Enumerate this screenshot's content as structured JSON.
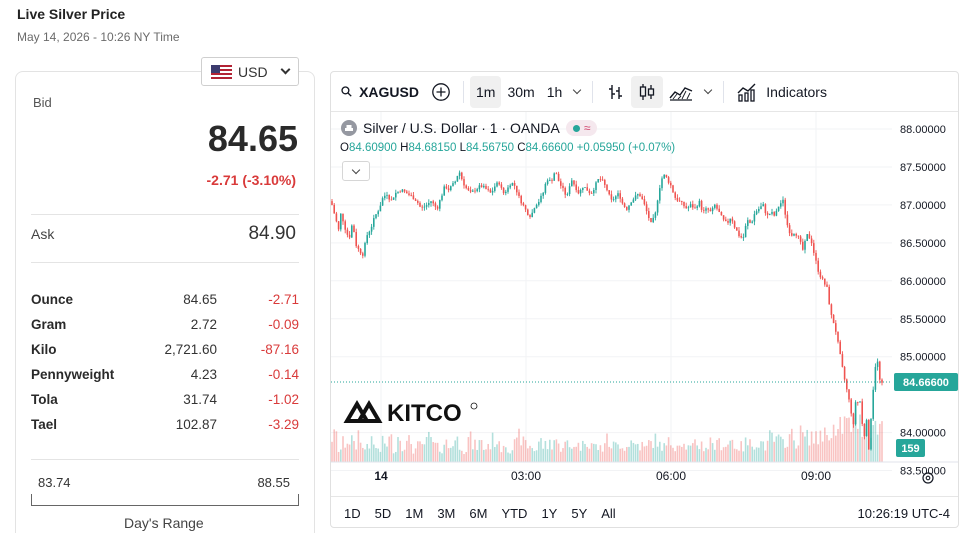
{
  "page": {
    "title": "Live Silver Price",
    "subtitle": "May 14, 2026 - 10:26 NY Time"
  },
  "currency": {
    "selected": "USD",
    "flag_icon": "us-flag-icon"
  },
  "bid": {
    "label": "Bid",
    "value": "84.65",
    "change": "-2.71 (-3.10%)"
  },
  "ask": {
    "label": "Ask",
    "value": "84.90"
  },
  "units": [
    {
      "name": "Ounce",
      "price": "84.65",
      "change": "-2.71"
    },
    {
      "name": "Gram",
      "price": "2.72",
      "change": "-0.09"
    },
    {
      "name": "Kilo",
      "price": "2,721.60",
      "change": "-87.16"
    },
    {
      "name": "Pennyweight",
      "price": "4.23",
      "change": "-0.14"
    },
    {
      "name": "Tola",
      "price": "31.74",
      "change": "-1.02"
    },
    {
      "name": "Tael",
      "price": "102.87",
      "change": "-3.29"
    }
  ],
  "days_range": {
    "low": "83.74",
    "high": "88.55",
    "label": "Day's Range"
  },
  "toolbar": {
    "symbol": "XAGUSD",
    "intervals": [
      "1m",
      "30m",
      "1h"
    ],
    "active_interval": "1m",
    "indicators_label": "Indicators"
  },
  "legend": {
    "title": "Silver / U.S. Dollar · 1 · OANDA",
    "open_label": "O",
    "open": "84.60900",
    "high_label": "H",
    "high": "84.68150",
    "low_label": "L",
    "low": "84.56750",
    "close_label": "C",
    "close": "84.66600",
    "change": "+0.05950 (+0.07%)"
  },
  "watermark": "KITCO",
  "price_tag": "84.66600",
  "volume_tag": "159",
  "range_buttons": [
    "1D",
    "5D",
    "1M",
    "3M",
    "6M",
    "YTD",
    "1Y",
    "5Y",
    "All"
  ],
  "clock": "10:26:19 UTC-4",
  "colors": {
    "up": "#26a69a",
    "down": "#ef5350",
    "negative_text": "#d93a3a"
  },
  "chart_data": {
    "type": "candlestick",
    "y_ticks": [
      "88.00000",
      "87.50000",
      "87.00000",
      "86.50000",
      "86.00000",
      "85.50000",
      "85.00000",
      "84.00000",
      "83.50000"
    ],
    "ylim": [
      83.5,
      88.0
    ],
    "x_ticks": [
      "14",
      "03:00",
      "06:00",
      "09:00"
    ],
    "last_price": 84.666,
    "path": [
      [
        0,
        87.05
      ],
      [
        4,
        86.85
      ],
      [
        8,
        86.65
      ],
      [
        10,
        86.9
      ],
      [
        14,
        86.7
      ],
      [
        18,
        86.55
      ],
      [
        22,
        86.8
      ],
      [
        24,
        86.5
      ],
      [
        28,
        86.4
      ],
      [
        32,
        86.35
      ],
      [
        36,
        86.6
      ],
      [
        40,
        86.7
      ],
      [
        44,
        86.85
      ],
      [
        48,
        86.95
      ],
      [
        52,
        87.1
      ],
      [
        56,
        87.15
      ],
      [
        60,
        87.05
      ],
      [
        64,
        87.15
      ],
      [
        70,
        87.2
      ],
      [
        76,
        87.15
      ],
      [
        82,
        87.1
      ],
      [
        86,
        87.05
      ],
      [
        90,
        86.95
      ],
      [
        96,
        87.0
      ],
      [
        100,
        87.05
      ],
      [
        106,
        86.95
      ],
      [
        110,
        87.1
      ],
      [
        114,
        87.25
      ],
      [
        118,
        87.2
      ],
      [
        124,
        87.3
      ],
      [
        128,
        87.45
      ],
      [
        132,
        87.3
      ],
      [
        136,
        87.2
      ],
      [
        140,
        87.15
      ],
      [
        144,
        87.2
      ],
      [
        150,
        87.25
      ],
      [
        156,
        87.2
      ],
      [
        160,
        87.15
      ],
      [
        164,
        87.25
      ],
      [
        168,
        87.3
      ],
      [
        172,
        87.15
      ],
      [
        176,
        87.2
      ],
      [
        180,
        87.3
      ],
      [
        184,
        87.25
      ],
      [
        188,
        87.1
      ],
      [
        192,
        87.0
      ],
      [
        196,
        86.9
      ],
      [
        200,
        86.85
      ],
      [
        204,
        87.0
      ],
      [
        208,
        87.05
      ],
      [
        212,
        87.15
      ],
      [
        216,
        87.35
      ],
      [
        220,
        87.3
      ],
      [
        224,
        87.45
      ],
      [
        228,
        87.3
      ],
      [
        232,
        87.2
      ],
      [
        236,
        87.1
      ],
      [
        240,
        87.35
      ],
      [
        244,
        87.25
      ],
      [
        248,
        87.15
      ],
      [
        252,
        87.25
      ],
      [
        256,
        87.2
      ],
      [
        260,
        87.15
      ],
      [
        264,
        87.25
      ],
      [
        268,
        87.35
      ],
      [
        272,
        87.3
      ],
      [
        276,
        87.2
      ],
      [
        280,
        87.05
      ],
      [
        284,
        87.1
      ],
      [
        288,
        87.15
      ],
      [
        292,
        87.0
      ],
      [
        296,
        86.95
      ],
      [
        300,
        87.05
      ],
      [
        304,
        87.1
      ],
      [
        308,
        87.15
      ],
      [
        312,
        87.05
      ],
      [
        316,
        86.9
      ],
      [
        320,
        86.75
      ],
      [
        324,
        86.85
      ],
      [
        328,
        87.2
      ],
      [
        332,
        87.4
      ],
      [
        336,
        87.35
      ],
      [
        340,
        87.25
      ],
      [
        344,
        87.1
      ],
      [
        348,
        87.05
      ],
      [
        352,
        87.0
      ],
      [
        356,
        86.95
      ],
      [
        360,
        87.0
      ],
      [
        364,
        86.95
      ],
      [
        368,
        87.05
      ],
      [
        372,
        86.9
      ],
      [
        376,
        86.95
      ],
      [
        380,
        86.9
      ],
      [
        384,
        87.0
      ],
      [
        388,
        86.9
      ],
      [
        392,
        86.8
      ],
      [
        396,
        86.75
      ],
      [
        400,
        86.85
      ],
      [
        404,
        86.7
      ],
      [
        408,
        86.6
      ],
      [
        412,
        86.55
      ],
      [
        416,
        86.8
      ],
      [
        420,
        86.75
      ],
      [
        424,
        86.9
      ],
      [
        428,
        86.95
      ],
      [
        432,
        87.0
      ],
      [
        436,
        86.85
      ],
      [
        440,
        86.9
      ],
      [
        444,
        86.85
      ],
      [
        448,
        87.0
      ],
      [
        452,
        87.05
      ],
      [
        456,
        86.75
      ],
      [
        460,
        86.6
      ],
      [
        464,
        86.65
      ],
      [
        468,
        86.55
      ],
      [
        472,
        86.4
      ],
      [
        476,
        86.6
      ],
      [
        480,
        86.55
      ],
      [
        484,
        86.3
      ],
      [
        488,
        86.1
      ],
      [
        492,
        86.0
      ],
      [
        496,
        85.9
      ],
      [
        500,
        85.55
      ],
      [
        504,
        85.4
      ],
      [
        508,
        85.1
      ],
      [
        512,
        84.8
      ],
      [
        516,
        84.55
      ],
      [
        520,
        84.3
      ],
      [
        522,
        84.0
      ],
      [
        524,
        84.45
      ],
      [
        526,
        84.3
      ],
      [
        528,
        84.55
      ],
      [
        532,
        84.0
      ],
      [
        534,
        83.95
      ],
      [
        536,
        84.25
      ],
      [
        538,
        83.7
      ],
      [
        540,
        84.2
      ],
      [
        542,
        84.55
      ],
      [
        544,
        84.85
      ],
      [
        546,
        85.0
      ],
      [
        548,
        84.75
      ],
      [
        550,
        84.6
      ],
      [
        552,
        84.67
      ]
    ],
    "volumes": [
      40,
      20,
      30,
      35,
      25,
      45,
      20,
      30,
      25,
      18,
      30,
      35,
      22,
      40,
      28,
      32,
      20,
      25,
      30,
      38,
      26,
      22,
      30,
      24,
      34,
      28,
      20,
      36,
      26,
      30,
      22,
      28,
      35,
      24,
      30,
      22,
      28,
      40,
      30,
      25,
      20,
      32,
      26,
      30,
      36,
      24,
      28,
      22,
      30,
      26,
      38,
      30,
      25,
      22,
      34,
      28,
      26,
      30,
      24,
      32,
      28,
      26,
      22,
      30,
      34,
      26,
      24,
      30,
      28,
      36,
      26,
      22,
      30,
      28,
      24,
      32,
      26,
      30,
      28,
      34,
      26,
      24,
      30,
      28,
      32,
      30,
      26,
      38,
      34,
      30,
      36,
      40,
      34,
      44,
      38,
      42,
      36,
      48,
      44,
      52,
      40,
      56,
      62,
      58,
      66,
      60,
      64,
      58,
      54,
      62
    ]
  }
}
